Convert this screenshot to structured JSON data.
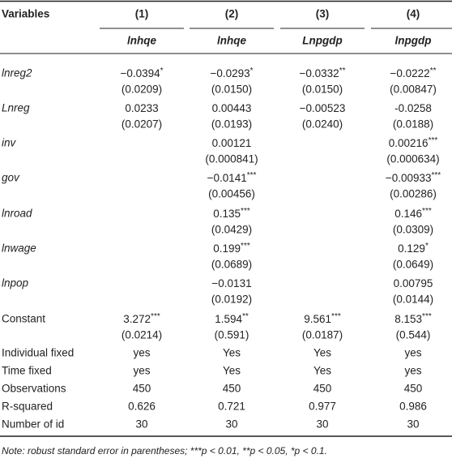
{
  "header": {
    "variables": "Variables",
    "columns": [
      "(1)",
      "(2)",
      "(3)",
      "(4)"
    ],
    "depvars": [
      "lnhqe",
      "lnhqe",
      "Lnpgdp",
      "lnpgdp"
    ]
  },
  "coef_rows": [
    {
      "label": "lnreg2",
      "coef": [
        "−0.0394",
        "−0.0293",
        "−0.0332",
        "−0.0222"
      ],
      "stars": [
        "*",
        "*",
        "**",
        "**"
      ],
      "se": [
        "(0.0209)",
        "(0.0150)",
        "(0.0150)",
        "(0.00847)"
      ]
    },
    {
      "label": "Lnreg",
      "coef": [
        "0.0233",
        "0.00443",
        "−0.00523",
        "-0.0258"
      ],
      "stars": [
        null,
        null,
        null,
        null
      ],
      "se": [
        "(0.0207)",
        "(0.0193)",
        "(0.0240)",
        "(0.0188)"
      ]
    },
    {
      "label": "inv",
      "coef": [
        null,
        "0.00121",
        null,
        "0.00216"
      ],
      "stars": [
        null,
        null,
        null,
        "***"
      ],
      "se": [
        null,
        "(0.000841)",
        null,
        "(0.000634)"
      ]
    },
    {
      "label": "gov",
      "coef": [
        null,
        "−0.0141",
        null,
        "−0.00933"
      ],
      "stars": [
        null,
        "***",
        null,
        "***"
      ],
      "se": [
        null,
        "(0.00456)",
        null,
        "(0.00286)"
      ]
    },
    {
      "label": "lnroad",
      "coef": [
        null,
        "0.135",
        null,
        "0.146"
      ],
      "stars": [
        null,
        "***",
        null,
        "***"
      ],
      "se": [
        null,
        "(0.0429)",
        null,
        "(0.0309)"
      ]
    },
    {
      "label": "lnwage",
      "coef": [
        null,
        "0.199",
        null,
        "0.129"
      ],
      "stars": [
        null,
        "***",
        null,
        "*"
      ],
      "se": [
        null,
        "(0.0689)",
        null,
        "(0.0649)"
      ]
    },
    {
      "label": "lnpop",
      "coef": [
        null,
        "−0.0131",
        null,
        "0.00795"
      ],
      "stars": [
        null,
        null,
        null,
        null
      ],
      "se": [
        null,
        "(0.0192)",
        null,
        "(0.0144)"
      ]
    },
    {
      "label": "Constant",
      "coef": [
        "3.272",
        "1.594",
        "9.561",
        "8.153"
      ],
      "stars": [
        "***",
        "**",
        "***",
        "***"
      ],
      "se": [
        "(0.0214)",
        "(0.591)",
        "(0.0187)",
        "(0.544)"
      ]
    }
  ],
  "stat_rows": [
    {
      "label": "Individual fixed",
      "cells": [
        "yes",
        "Yes",
        "Yes",
        "yes"
      ]
    },
    {
      "label": "Time fixed",
      "cells": [
        "yes",
        "Yes",
        "Yes",
        "yes"
      ]
    },
    {
      "label": "Observations",
      "cells": [
        450,
        450,
        450,
        450
      ]
    },
    {
      "label": "R-squared",
      "cells": [
        0.626,
        0.721,
        0.977,
        0.986
      ]
    },
    {
      "label": "Number of id",
      "cells": [
        30,
        30,
        30,
        30
      ]
    }
  ],
  "note": "Note: robust standard error in parentheses; ***p < 0.01, **p < 0.05, *p < 0.1."
}
